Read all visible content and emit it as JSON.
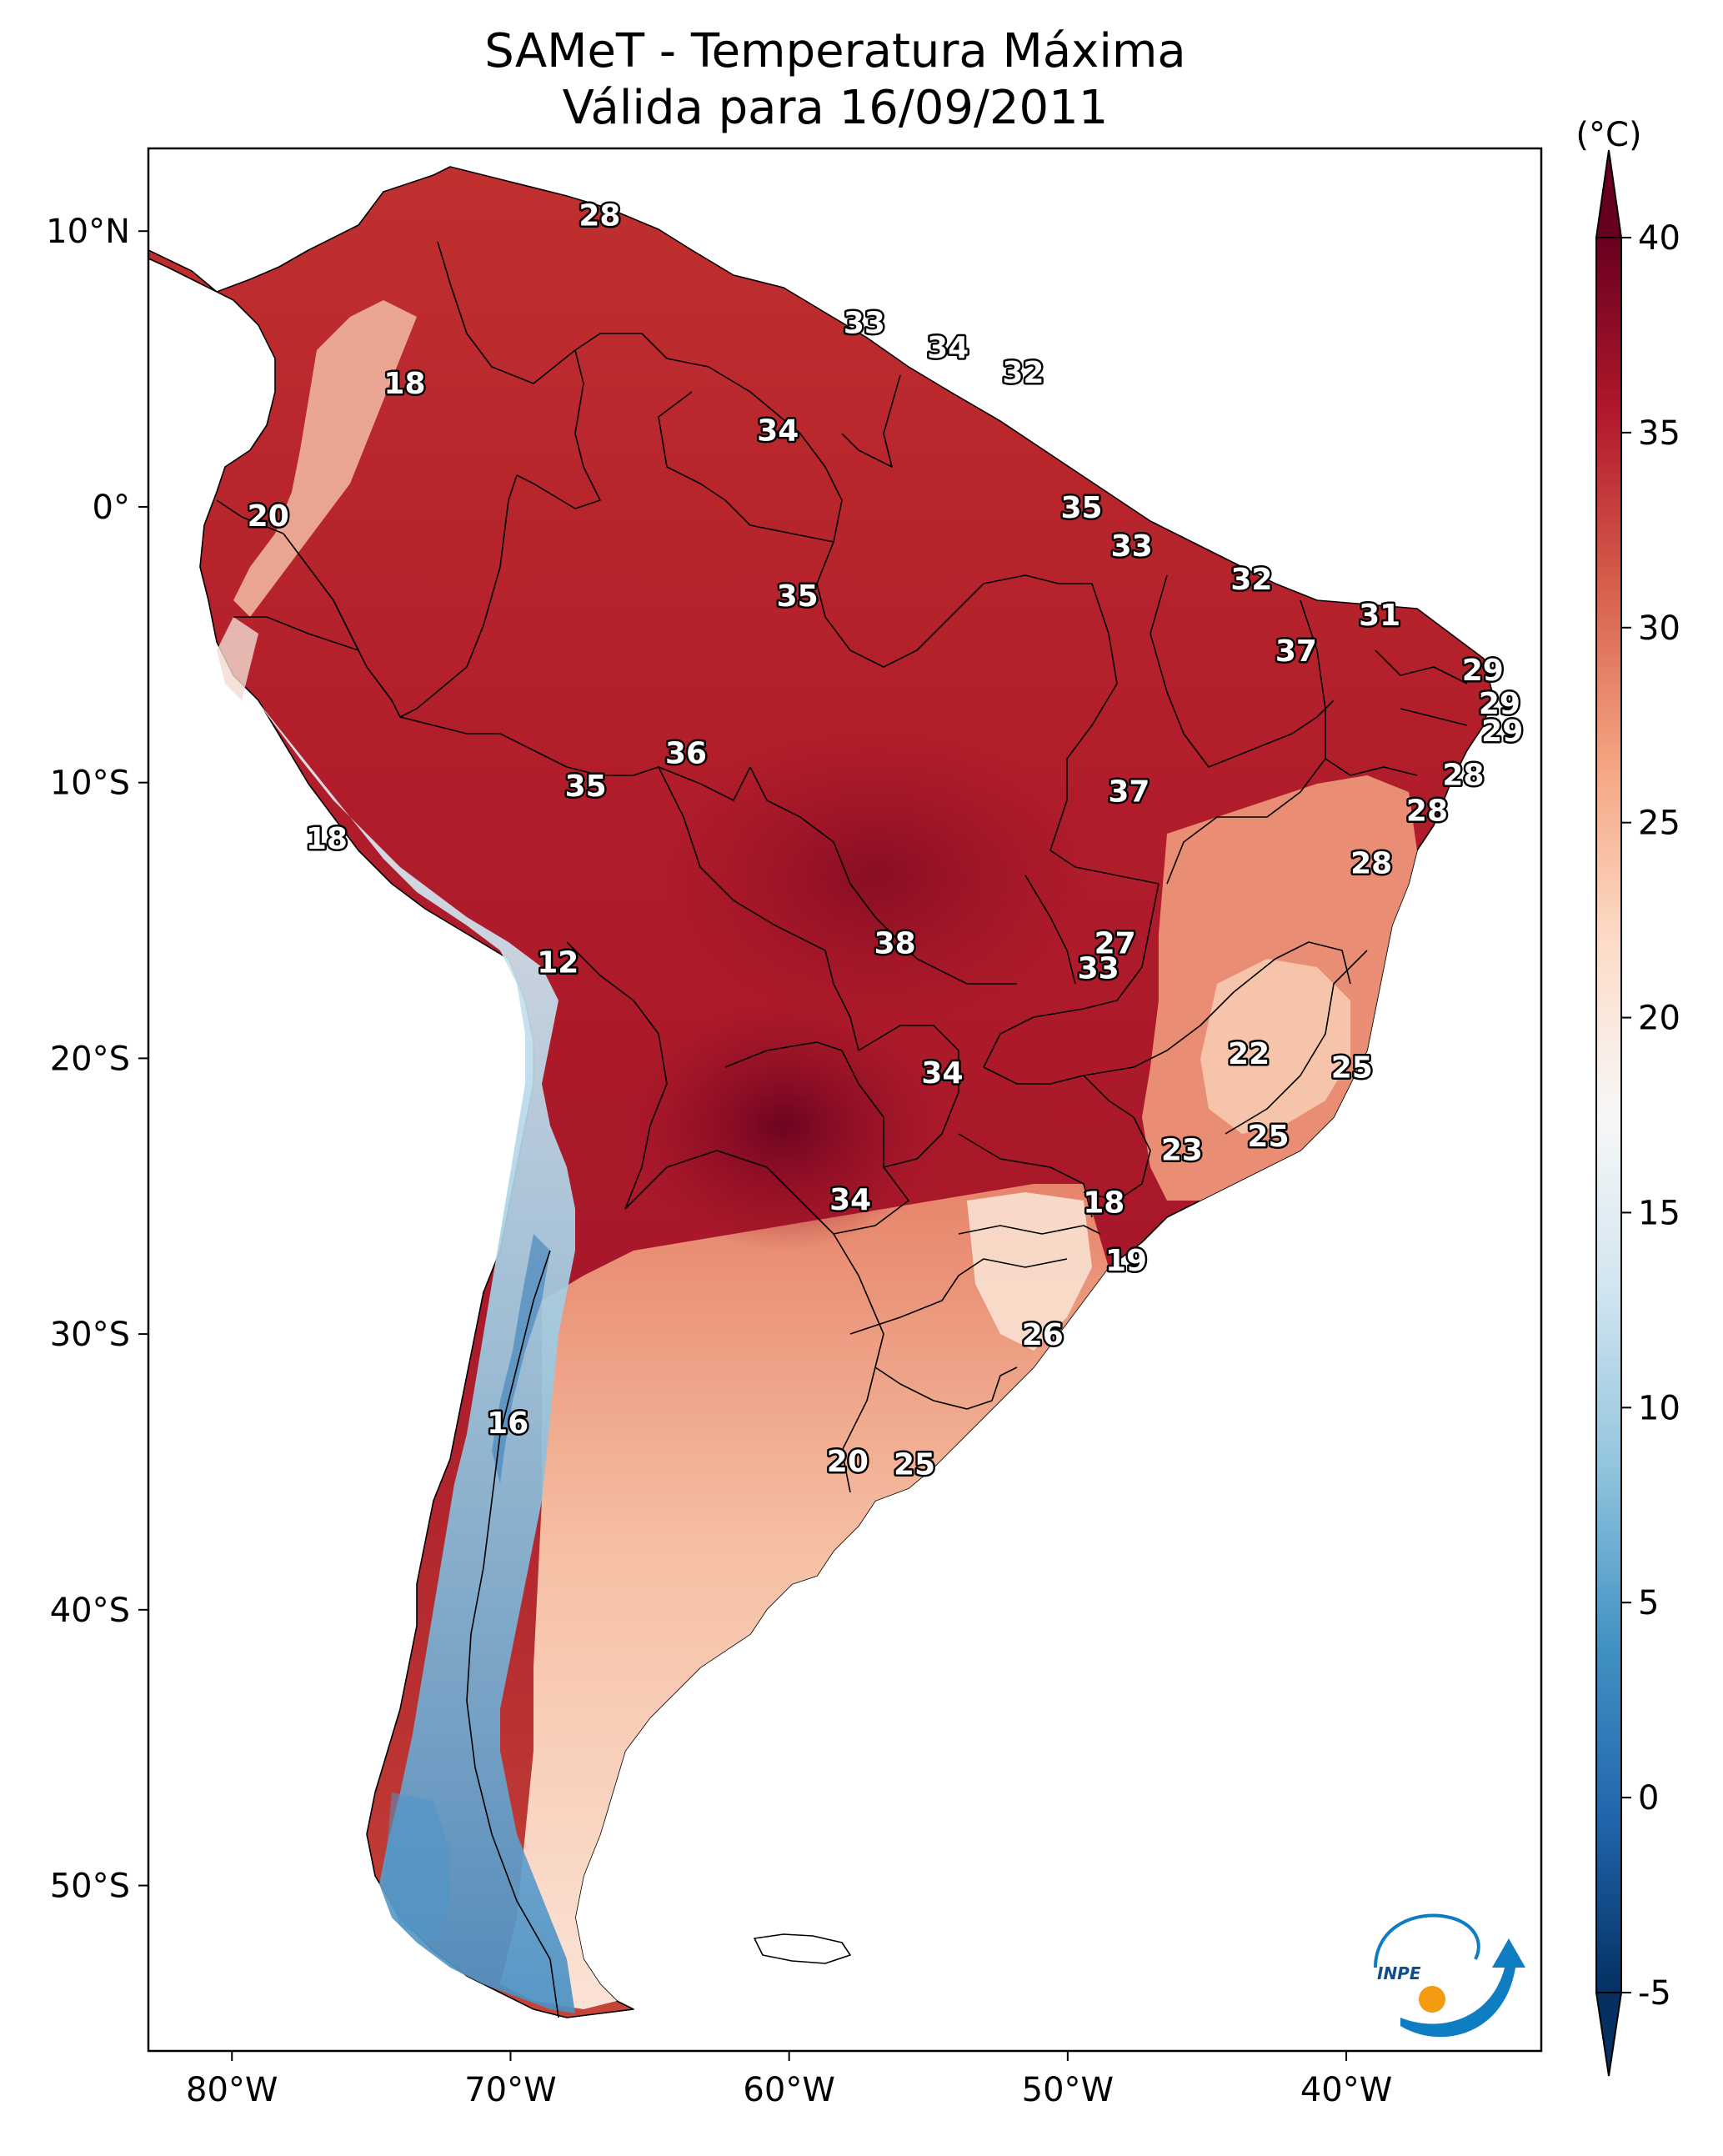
{
  "title": {
    "line1": "SAMeT - Temperatura Máxima",
    "line2": "Válida para 16/09/2011"
  },
  "map": {
    "lon_range": [
      -83,
      -33
    ],
    "lat_range": [
      -56,
      13
    ],
    "xticks": [
      {
        "lon": -80,
        "label": "80°W"
      },
      {
        "lon": -70,
        "label": "70°W"
      },
      {
        "lon": -60,
        "label": "60°W"
      },
      {
        "lon": -50,
        "label": "50°W"
      },
      {
        "lon": -40,
        "label": "40°W"
      }
    ],
    "yticks": [
      {
        "lat": 10,
        "label": "10°N"
      },
      {
        "lat": 0,
        "label": "0°"
      },
      {
        "lat": -10,
        "label": "10°S"
      },
      {
        "lat": -20,
        "label": "20°S"
      },
      {
        "lat": -30,
        "label": "30°S"
      },
      {
        "lat": -40,
        "label": "40°S"
      },
      {
        "lat": -50,
        "label": "50°S"
      }
    ],
    "temperature_labels": [
      {
        "lon": -66.8,
        "lat": 10.6,
        "value": "28"
      },
      {
        "lon": -57.3,
        "lat": 6.7,
        "value": "33"
      },
      {
        "lon": -54.3,
        "lat": 5.8,
        "value": "34"
      },
      {
        "lon": -51.6,
        "lat": 4.9,
        "value": "32"
      },
      {
        "lon": -73.8,
        "lat": 4.5,
        "value": "18"
      },
      {
        "lon": -60.4,
        "lat": 2.8,
        "value": "34"
      },
      {
        "lon": -78.7,
        "lat": -0.3,
        "value": "20"
      },
      {
        "lon": -49.5,
        "lat": -0.0,
        "value": "35"
      },
      {
        "lon": -47.7,
        "lat": -1.4,
        "value": "33"
      },
      {
        "lon": -43.4,
        "lat": -2.6,
        "value": "32"
      },
      {
        "lon": -59.7,
        "lat": -3.2,
        "value": "35"
      },
      {
        "lon": -38.8,
        "lat": -3.9,
        "value": "31"
      },
      {
        "lon": -41.8,
        "lat": -5.2,
        "value": "37"
      },
      {
        "lon": -35.1,
        "lat": -5.9,
        "value": "29"
      },
      {
        "lon": -34.5,
        "lat": -7.1,
        "value": "29"
      },
      {
        "lon": -34.4,
        "lat": -8.1,
        "value": "29"
      },
      {
        "lon": -63.7,
        "lat": -8.9,
        "value": "36"
      },
      {
        "lon": -35.8,
        "lat": -9.7,
        "value": "28"
      },
      {
        "lon": -67.3,
        "lat": -10.1,
        "value": "35"
      },
      {
        "lon": -47.8,
        "lat": -10.3,
        "value": "37"
      },
      {
        "lon": -37.1,
        "lat": -11.0,
        "value": "28"
      },
      {
        "lon": -76.6,
        "lat": -12.0,
        "value": "18"
      },
      {
        "lon": -39.1,
        "lat": -12.9,
        "value": "28"
      },
      {
        "lon": -48.3,
        "lat": -15.8,
        "value": "27"
      },
      {
        "lon": -56.2,
        "lat": -15.8,
        "value": "38"
      },
      {
        "lon": -68.3,
        "lat": -16.5,
        "value": "12"
      },
      {
        "lon": -48.9,
        "lat": -16.7,
        "value": "33"
      },
      {
        "lon": -43.5,
        "lat": -19.8,
        "value": "22"
      },
      {
        "lon": -39.8,
        "lat": -20.3,
        "value": "25"
      },
      {
        "lon": -54.5,
        "lat": -20.5,
        "value": "34"
      },
      {
        "lon": -42.8,
        "lat": -22.8,
        "value": "25"
      },
      {
        "lon": -45.9,
        "lat": -23.3,
        "value": "23"
      },
      {
        "lon": -57.8,
        "lat": -25.1,
        "value": "34"
      },
      {
        "lon": -48.7,
        "lat": -25.2,
        "value": "18"
      },
      {
        "lon": -47.9,
        "lat": -27.3,
        "value": "19"
      },
      {
        "lon": -50.9,
        "lat": -30.0,
        "value": "26"
      },
      {
        "lon": -70.1,
        "lat": -33.2,
        "value": "16"
      },
      {
        "lon": -57.9,
        "lat": -34.6,
        "value": "20"
      },
      {
        "lon": -55.5,
        "lat": -34.7,
        "value": "25"
      }
    ]
  },
  "colorbar": {
    "unit": "(°C)",
    "min": -5,
    "max": 40,
    "ticks": [
      {
        "value": 40,
        "label": "40"
      },
      {
        "value": 35,
        "label": "35"
      },
      {
        "value": 30,
        "label": "30"
      },
      {
        "value": 25,
        "label": "25"
      },
      {
        "value": 20,
        "label": "20"
      },
      {
        "value": 15,
        "label": "15"
      },
      {
        "value": 10,
        "label": "10"
      },
      {
        "value": 5,
        "label": "5"
      },
      {
        "value": 0,
        "label": "0"
      },
      {
        "value": -5,
        "label": "-5"
      }
    ],
    "colormap": [
      "#053061",
      "#2166ac",
      "#4393c3",
      "#92c5de",
      "#d1e5f0",
      "#f7f7f7",
      "#fddbc7",
      "#f4a582",
      "#d6604d",
      "#b2182b",
      "#67001f"
    ]
  },
  "logo": {
    "text": "INPE",
    "colors": [
      "#0f7dc2",
      "#f39c12"
    ]
  }
}
